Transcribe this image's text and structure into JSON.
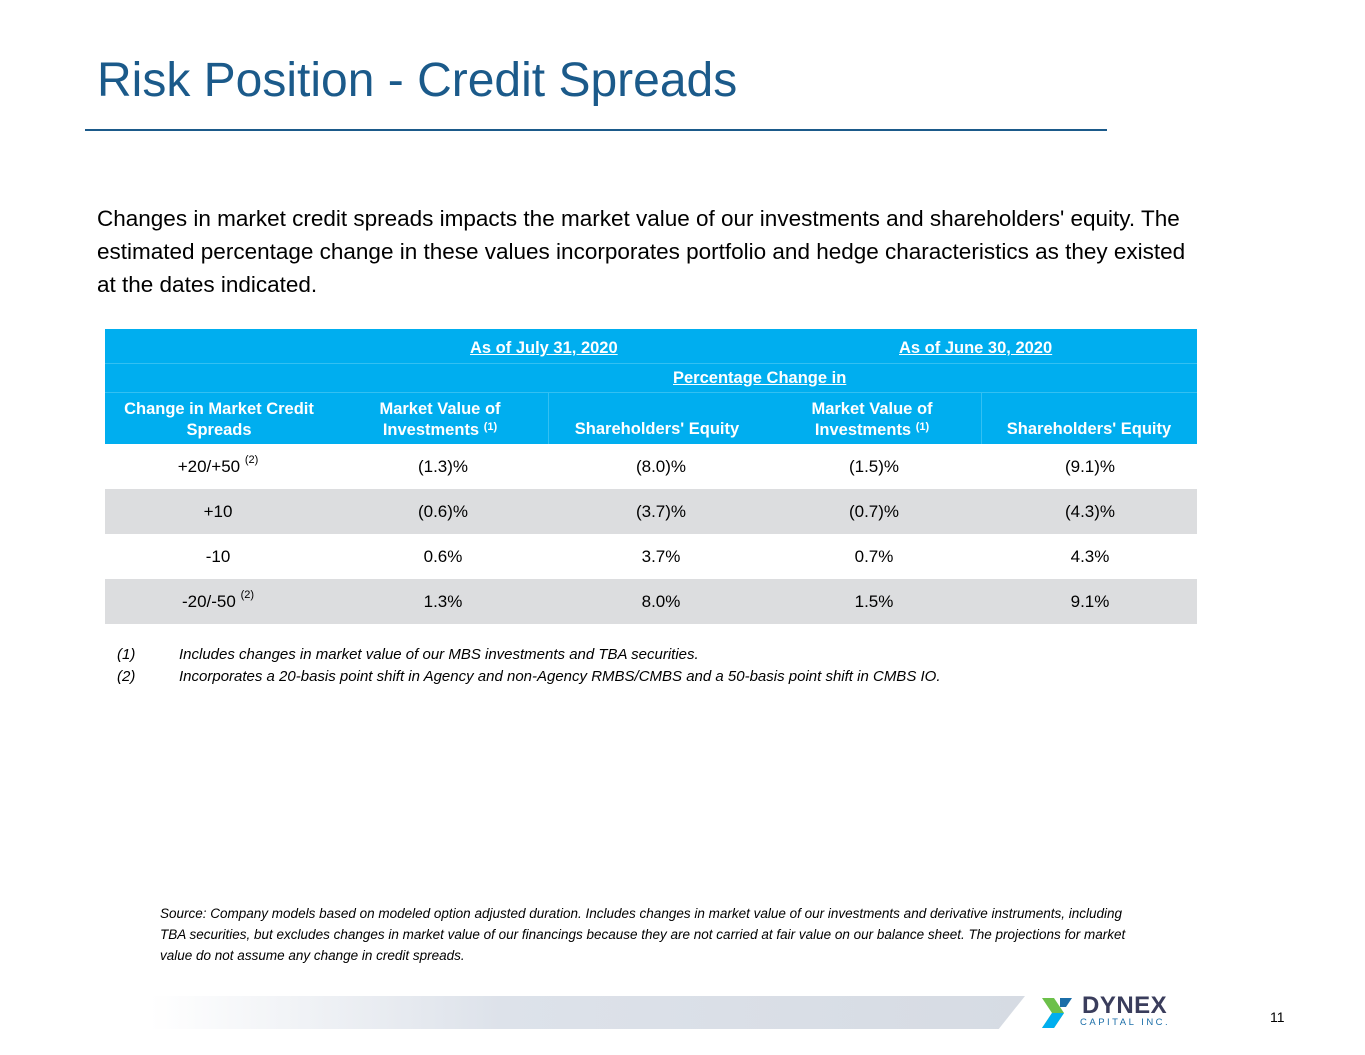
{
  "title": "Risk Position - Credit Spreads",
  "intro": "Changes in market credit spreads impacts the market value of our investments and shareholders' equity. The estimated percentage change in these values incorporates portfolio and hedge characteristics as they existed at the dates indicated.",
  "table": {
    "period1": "As of July 31, 2020",
    "period2": "As of June 30, 2020",
    "subheader": "Percentage Change in",
    "col_change_line1": "Change in Market Credit",
    "col_change_line2": "Spreads",
    "col_mv_line1": "Market Value of",
    "col_mv_line2": "Investments",
    "col_mv_note": "(1)",
    "col_se": "Shareholders' Equity",
    "rows": [
      {
        "label": "+20/+50",
        "note": "(2)",
        "mv1": "(1.3)%",
        "se1": "(8.0)%",
        "mv2": "(1.5)%",
        "se2": "(9.1)%"
      },
      {
        "label": "+10",
        "note": "",
        "mv1": "(0.6)%",
        "se1": "(3.7)%",
        "mv2": "(0.7)%",
        "se2": "(4.3)%"
      },
      {
        "label": "-10",
        "note": "",
        "mv1": "0.6%",
        "se1": "3.7%",
        "mv2": "0.7%",
        "se2": "4.3%"
      },
      {
        "label": "-20/-50",
        "note": "(2)",
        "mv1": "1.3%",
        "se1": "8.0%",
        "mv2": "1.5%",
        "se2": "9.1%"
      }
    ]
  },
  "footnotes": [
    {
      "num": "(1)",
      "text": "Includes changes in market value of our MBS investments and TBA securities."
    },
    {
      "num": "(2)",
      "text": "Incorporates a 20-basis point shift in Agency and non-Agency RMBS/CMBS and a 50-basis point shift in CMBS IO."
    }
  ],
  "source": "Source: Company models based on modeled option adjusted duration. Includes changes in market value of our investments and derivative instruments, including TBA securities, but excludes changes in market value of our financings because they are not carried at fair value on our balance sheet. The projections for market value do not assume any change in credit spreads.",
  "logo": {
    "name": "DYNEX",
    "sub": "CAPITAL INC."
  },
  "page_number": "11",
  "colors": {
    "title": "#1b5a8a",
    "header_bg": "#00aeef",
    "alt_row": "#dcdddf"
  }
}
